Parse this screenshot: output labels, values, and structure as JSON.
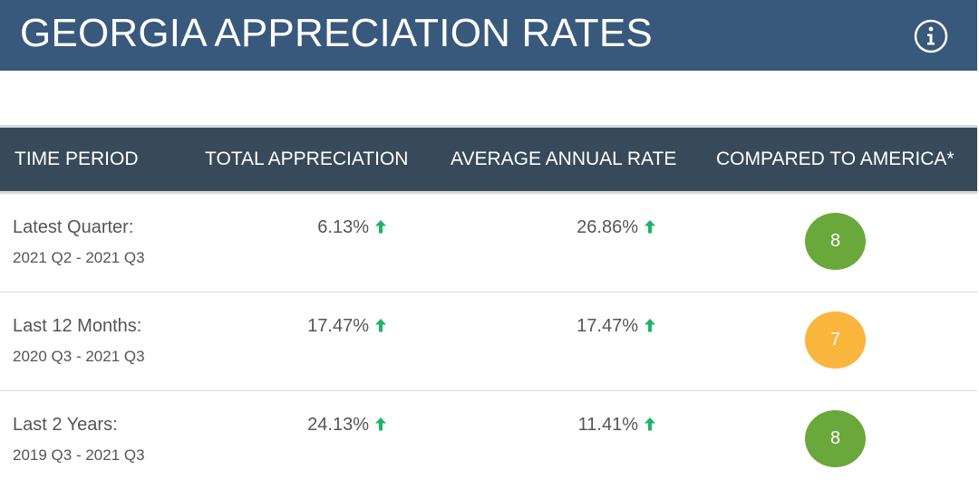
{
  "header": {
    "title": "GEORGIA APPRECIATION RATES",
    "info_icon": "info-circle-icon"
  },
  "table": {
    "columns": [
      "TIME PERIOD",
      "TOTAL APPRECIATION",
      "AVERAGE ANNUAL RATE",
      "COMPARED TO AMERICA*"
    ],
    "rows": [
      {
        "period": "Latest Quarter:",
        "range": "2021 Q2 - 2021 Q3",
        "total": "6.13%",
        "total_trend": "up-arrow-icon",
        "annual": "26.86%",
        "annual_trend": "up-arrow-icon",
        "compared": "8",
        "badge_color": "#6aa83b"
      },
      {
        "period": "Last 12 Months:",
        "range": "2020 Q3 - 2021 Q3",
        "total": "17.47%",
        "total_trend": "up-arrow-icon",
        "annual": "17.47%",
        "annual_trend": "up-arrow-icon",
        "compared": "7",
        "badge_color": "#f9b53c"
      },
      {
        "period": "Last 2 Years:",
        "range": "2019 Q3 - 2021 Q3",
        "total": "24.13%",
        "total_trend": "up-arrow-icon",
        "annual": "11.41%",
        "annual_trend": "up-arrow-icon",
        "compared": "8",
        "badge_color": "#6aa83b"
      }
    ]
  },
  "colors": {
    "banner": "#38597c",
    "table_header": "#38495a",
    "trend_up": "#1db36b",
    "text": "#555555"
  }
}
